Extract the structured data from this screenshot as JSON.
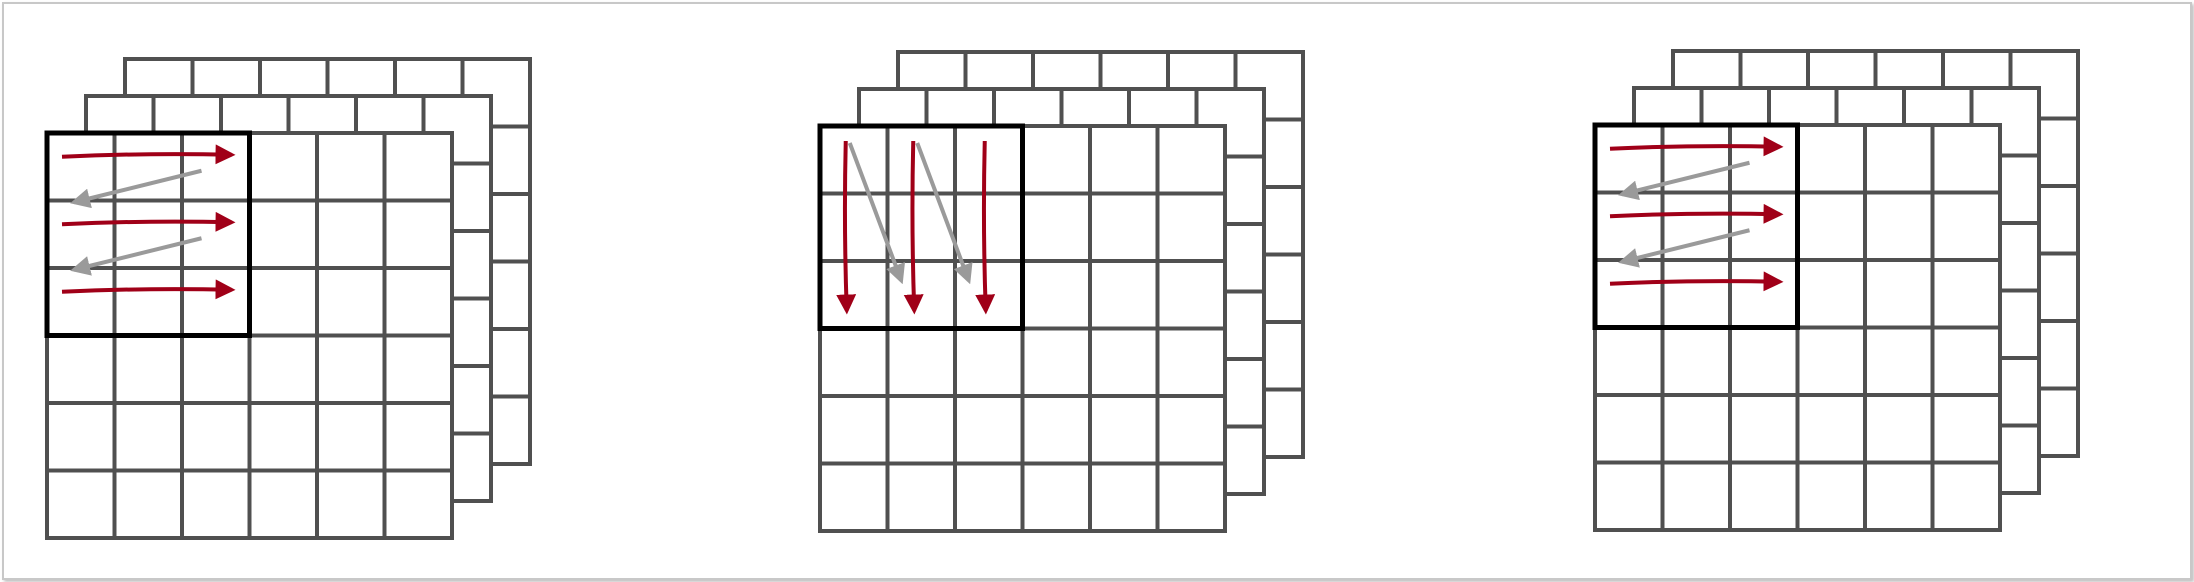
{
  "diagram": {
    "description_text": "",
    "grid": {
      "rows": 6,
      "cols": 6,
      "layers": 3
    },
    "window": {
      "rows": 3,
      "cols": 3
    },
    "colors": {
      "grid_line": "#505050",
      "window_border": "#000000",
      "scan_arrow": "#a00018",
      "return_arrow": "#9a9a9a",
      "frame_border": "#c8c8c8",
      "background": "#ffffff"
    },
    "panels": [
      {
        "name": "panel-row-scan",
        "scan": "row-major",
        "arrow_count": 3
      },
      {
        "name": "panel-column-scan",
        "scan": "column-major",
        "arrow_count": 3
      },
      {
        "name": "panel-row-scan-repeat",
        "scan": "row-major",
        "arrow_count": 3
      }
    ]
  }
}
